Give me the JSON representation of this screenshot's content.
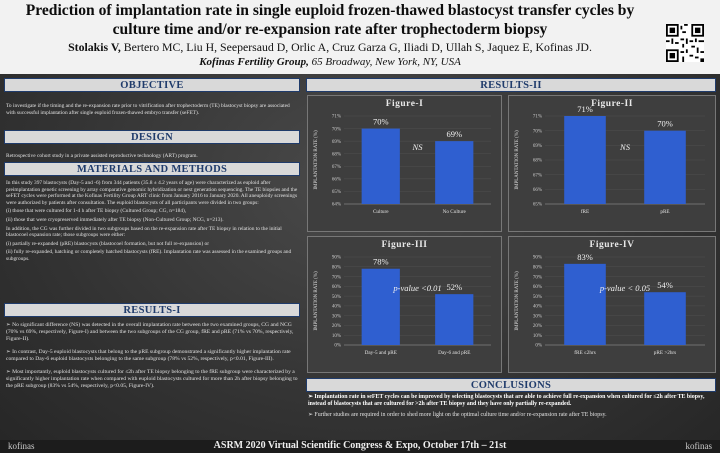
{
  "header": {
    "title": "Prediction of implantation rate in single euploid frozen-thawed blastocyst transfer cycles by culture time and/or re-expansion rate after trophectoderm biopsy",
    "lead_author": "Stolakis V,",
    "other_authors": " Bertero MC, Liu H, Seepersaud D, Orlic A, Cruz Garza G, Iliadi D, Ullah S, Jaquez E, Kofinas JD.",
    "affiliation_bold": "Kofinas Fertility Group,",
    "affiliation_rest": " 65 Broadway, New York, NY, USA"
  },
  "sections": {
    "objective": "OBJECTIVE",
    "design": "DESIGN",
    "materials": "MATERIALS AND METHODS",
    "results1": "RESULTS-I",
    "results2": "RESULTS-II",
    "conclusions": "CONCLUSIONS"
  },
  "objective_text": "To investigate if the timing and the re-expansion rate prior to vitrification after trophectoderm (TE) blastocyst biopsy are associated with successful implantation after single euploid frozen-thawed embryo transfer (seFET).",
  "design_text": "Retrospective cohort study in a private assisted reproductive technology (ART) program.",
  "methods": {
    "p1": "In this study 397 blastocysts (Day-5 and -6) from 344 patients (35.8 ± 4.2 years of age) were characterized as euploid after preimplantation genetic screening by array comparative genomic hybridization or next generation sequencing. The TE biopsies and the seFET cycles were performed at the Kofinas Fertility Group ART clinic from January 2016 to January 2020. All aneuploidy screenings were authorized by patients after consultation. The euploid blastocysts of all participants were divided in two groups:",
    "i1": "(i)   those that were cultured for 1-4 h after TE biopsy (Cultured Group; CG, n=184),",
    "i2": "(ii) those that were cryopreserved immediately after TE biopsy (Non-Cultured Group; NCG, n=213).",
    "p2": "In addition, the CG was further divided in two subgroups based on the re-expansion rate after TE biopsy in relation to the initial blastocoel expansion rate; those subgroups were either:",
    "i3": "(i)   partially re-expanded (pRE) blastocysts (blastocoel formation, but not full re-expansion) or",
    "i4": "(ii) fully re-expanded, hatching or completely hatched blastocysts (fRE). Implantation rate was assessed in the examined groups and subgroups."
  },
  "results1": {
    "b1": "No significant difference (NS) was detected in the overall implantation rate between the two examined groups, CG and NCG (70% vs 69%, respectively, Figure-I) and between the two subgroups of the CG group, fRE and pRE (71% vs 70%, respectively, Figure-II).",
    "b2": "In contrast, Day-5 euploid blastocysts that belong to the pRE subgroup demonstrated a significantly higher implantation rate compared to Day-6 euploid blastocysts belonging to the same subgroup (78% vs 52%, respectively, p<0.01, Figure-III).",
    "b3": "Most importantly, euploid blastocysts cultured for ≤2h after TE biopsy belonging to the fRE subgroup were characterized by a significantly higher implantation rate when compared with euploid blastocysts cultured for more than 2h after biopsy belonging to the pRE subgroup (83% vs 54%, respectively, p<0.05, Figure-IV)."
  },
  "conclusions": {
    "b1": "Implantation rate in seFET cycles can be improved by selecting blastocysts that are able to achieve full re-expansion when cultured for ≤2h after TE biopsy, instead of blastocysts that are cultured for >2h after TE biopsy and they have only partially re-expanded.",
    "b2": "Further studies are required in order to shed more light on the optimal culture time and/or re-expansion rate after TE biopsy."
  },
  "footer": {
    "text": "ASRM 2020 Virtual Scientific Congress & Expo, October 17th – 21st",
    "logo_left": "kofinas",
    "logo_right": "kofinas"
  },
  "colors": {
    "bar": "#2f5fd0",
    "section_text": "#1f3b6b"
  },
  "chart_data": [
    {
      "type": "bar",
      "title": "Figure-I",
      "ylabel": "IMPLANTATION RATE (%)",
      "categories": [
        "Culture",
        "No Culture"
      ],
      "values": [
        70,
        69
      ],
      "value_labels": [
        "70%",
        "69%"
      ],
      "ylim": [
        64,
        71
      ],
      "yticks": [
        64,
        65,
        66,
        67,
        68,
        69,
        70,
        71
      ],
      "annotation": "NS"
    },
    {
      "type": "bar",
      "title": "Figure-II",
      "ylabel": "IMPLANTATION RATE (%)",
      "categories": [
        "fRE",
        "pRE"
      ],
      "values": [
        71,
        70
      ],
      "value_labels": [
        "71%",
        "70%"
      ],
      "ylim": [
        65,
        71
      ],
      "yticks": [
        65,
        66,
        67,
        68,
        69,
        70,
        71
      ],
      "annotation": "NS"
    },
    {
      "type": "bar",
      "title": "Figure-III",
      "ylabel": "IMPLANTATION RATE (%)",
      "categories": [
        "Day-5 and pRE",
        "Day-6 and pRE"
      ],
      "values": [
        78,
        52
      ],
      "value_labels": [
        "78%",
        "52%"
      ],
      "ylim": [
        0,
        90
      ],
      "yticks": [
        0,
        10,
        20,
        30,
        40,
        50,
        60,
        70,
        80,
        90
      ],
      "annotation": "p-value <0.01"
    },
    {
      "type": "bar",
      "title": "Figure-IV",
      "ylabel": "IMPLANTATION RATE (%)",
      "categories": [
        "fRE ≤2hrs",
        "pRE >2hrs"
      ],
      "values": [
        83,
        54
      ],
      "value_labels": [
        "83%",
        "54%"
      ],
      "ylim": [
        0,
        90
      ],
      "yticks": [
        0,
        10,
        20,
        30,
        40,
        50,
        60,
        70,
        80,
        90
      ],
      "annotation": "p-value < 0.05"
    }
  ]
}
